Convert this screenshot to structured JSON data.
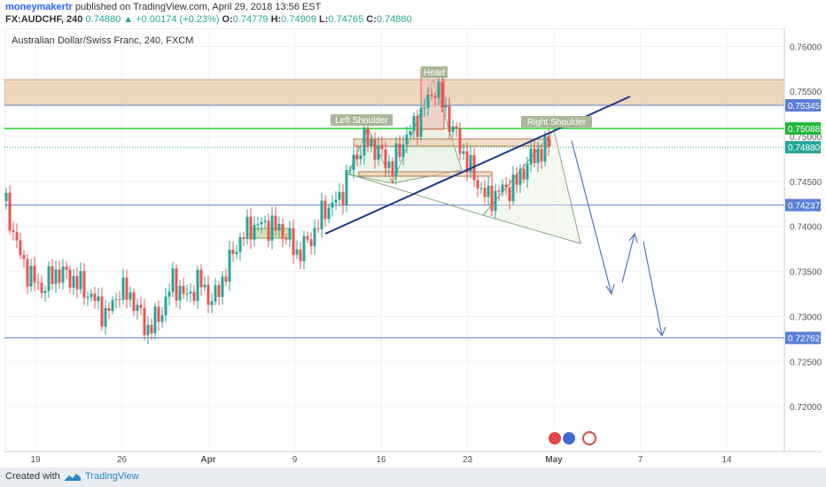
{
  "publication": {
    "author": "moneymakertr",
    "text": "published on TradingView.com, April 29, 2018 13:56 EST"
  },
  "ohlc": {
    "symbol": "FX:AUDCHF, 240",
    "last": "0.74880",
    "change": "+0.00174 (+0.23%)",
    "open_label": "O:",
    "open": "0.74779",
    "high_label": "H:",
    "high": "0.74909",
    "low_label": "L:",
    "low": "0.74765",
    "close_label": "C:",
    "close": "0.74880"
  },
  "footer": {
    "created_with": "Created with",
    "brand": "TradingView"
  },
  "chart_data": {
    "type": "candlestick",
    "title": "Australian Dollar/Swiss Franc, 240, FXCM",
    "ylim": [
      0.715,
      0.762
    ],
    "y_ticks": [
      "0.76000",
      "0.75500",
      "0.75000",
      "0.74500",
      "0.74000",
      "0.73500",
      "0.73000",
      "0.72500",
      "0.72000"
    ],
    "x_ticks": [
      "19",
      "26",
      "Apr",
      "9",
      "16",
      "23",
      "May",
      "7",
      "14"
    ],
    "price_badges": [
      {
        "value": "0.75345",
        "color": "#5b7fd6"
      },
      {
        "value": "0.75088",
        "color": "#22b83a"
      },
      {
        "value": "0.74880",
        "color": "#26a69a"
      },
      {
        "value": "0.74237",
        "color": "#5b7fd6"
      },
      {
        "value": "0.72762",
        "color": "#5b7fd6"
      }
    ],
    "horizontal_lines": [
      {
        "value": 0.75345,
        "color": "#5b7fd6"
      },
      {
        "value": 0.75088,
        "color": "#22d633"
      },
      {
        "value": 0.74237,
        "color": "#5b7fd6"
      },
      {
        "value": 0.72762,
        "color": "#5b7fd6"
      }
    ],
    "zone": {
      "from": 0.75345,
      "to": 0.7563,
      "color": "#e8c9a8"
    },
    "annotations": [
      "Left Shoulder",
      "Head",
      "Right Shoulder"
    ],
    "colors": {
      "up": "#26a69a",
      "down": "#ef5350"
    }
  }
}
